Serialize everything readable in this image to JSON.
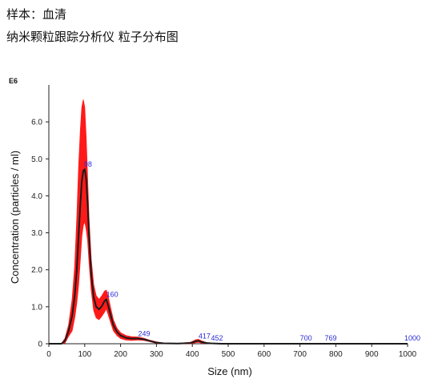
{
  "caption": {
    "line1": "样本：血清",
    "line2": "纳米颗粒跟踪分析仪 粒子分布图"
  },
  "colors": {
    "band": "#ff1a1a",
    "mean": "#1a1a1a",
    "peak_label": "#2b2bd6"
  },
  "chart_data": {
    "type": "line",
    "xlabel": "Size (nm)",
    "ylabel": "Concentration (particles / ml)",
    "y_exponent_label": "E6",
    "xlim": [
      0,
      1000
    ],
    "ylim": [
      0,
      7
    ],
    "x_ticks": [
      "0",
      "100",
      "200",
      "300",
      "400",
      "500",
      "600",
      "700",
      "800",
      "900",
      "1000"
    ],
    "y_ticks": [
      "0",
      "1.0",
      "2.0",
      "3.0",
      "4.0",
      "5.0",
      "6.0"
    ],
    "grid": false,
    "series": [
      {
        "role": "mean",
        "x": [
          0,
          35,
          45,
          55,
          65,
          72,
          78,
          83,
          88,
          92,
          96,
          100,
          104,
          108,
          112,
          118,
          125,
          132,
          140,
          148,
          155,
          160,
          165,
          172,
          180,
          190,
          200,
          215,
          230,
          249,
          265,
          280,
          300,
          320,
          360,
          395,
          410,
          417,
          425,
          440,
          452,
          480,
          600,
          700,
          769,
          900,
          1000
        ],
        "y": [
          0,
          0,
          0.08,
          0.35,
          0.75,
          1.3,
          2.0,
          2.95,
          3.8,
          4.4,
          4.68,
          4.72,
          4.45,
          3.8,
          2.9,
          1.9,
          1.25,
          1.0,
          0.93,
          1.02,
          1.15,
          1.2,
          1.05,
          0.78,
          0.5,
          0.32,
          0.22,
          0.16,
          0.14,
          0.14,
          0.12,
          0.08,
          0.03,
          0.01,
          0.005,
          0.02,
          0.07,
          0.08,
          0.05,
          0.02,
          0.01,
          0,
          0,
          0,
          0,
          0,
          0
        ]
      },
      {
        "role": "error_band_upper",
        "x": [
          0,
          35,
          45,
          55,
          65,
          72,
          78,
          83,
          88,
          92,
          96,
          100,
          104,
          108,
          112,
          118,
          125,
          132,
          140,
          148,
          155,
          160,
          165,
          172,
          180,
          190,
          200,
          215,
          230,
          249,
          265,
          280,
          300,
          320,
          360,
          395,
          410,
          417,
          425,
          440,
          452,
          480,
          600,
          700,
          769,
          900,
          1000
        ],
        "y": [
          0,
          0,
          0.15,
          0.5,
          1.2,
          2.1,
          3.4,
          4.8,
          5.8,
          6.4,
          6.6,
          6.4,
          5.6,
          4.5,
          3.4,
          2.3,
          1.6,
          1.3,
          1.2,
          1.3,
          1.42,
          1.45,
          1.3,
          0.98,
          0.65,
          0.42,
          0.3,
          0.22,
          0.19,
          0.18,
          0.15,
          0.1,
          0.05,
          0.02,
          0.01,
          0.04,
          0.11,
          0.12,
          0.08,
          0.03,
          0.015,
          0,
          0,
          0,
          0,
          0,
          0
        ]
      },
      {
        "role": "error_band_lower",
        "x": [
          0,
          35,
          45,
          55,
          65,
          72,
          78,
          83,
          88,
          92,
          96,
          100,
          104,
          108,
          112,
          118,
          125,
          132,
          140,
          148,
          155,
          160,
          165,
          172,
          180,
          190,
          200,
          215,
          230,
          249,
          265,
          280,
          300,
          320,
          360,
          395,
          410,
          417,
          425,
          440,
          452,
          480,
          600,
          700,
          769,
          900,
          1000
        ],
        "y": [
          0,
          0,
          0.02,
          0.2,
          0.35,
          0.7,
          1.1,
          1.6,
          2.3,
          2.9,
          3.2,
          3.3,
          3.1,
          2.8,
          2.2,
          1.45,
          0.9,
          0.7,
          0.65,
          0.75,
          0.85,
          0.95,
          0.8,
          0.58,
          0.35,
          0.22,
          0.14,
          0.1,
          0.09,
          0.1,
          0.09,
          0.06,
          0.01,
          0,
          0,
          0,
          0.03,
          0.04,
          0.02,
          0.01,
          0,
          0,
          0,
          0,
          0,
          0,
          0
        ]
      }
    ],
    "peak_labels": [
      {
        "text": "98",
        "x": 98,
        "y": 4.72
      },
      {
        "text": "160",
        "x": 160,
        "y": 1.2
      },
      {
        "text": "249",
        "x": 249,
        "y": 0.14
      },
      {
        "text": "417",
        "x": 417,
        "y": 0.08
      },
      {
        "text": "452",
        "x": 452,
        "y": 0.01
      },
      {
        "text": "700",
        "x": 700,
        "y": 0
      },
      {
        "text": "769",
        "x": 769,
        "y": 0
      },
      {
        "text": "1000",
        "x": 1000,
        "y": 0
      }
    ]
  }
}
